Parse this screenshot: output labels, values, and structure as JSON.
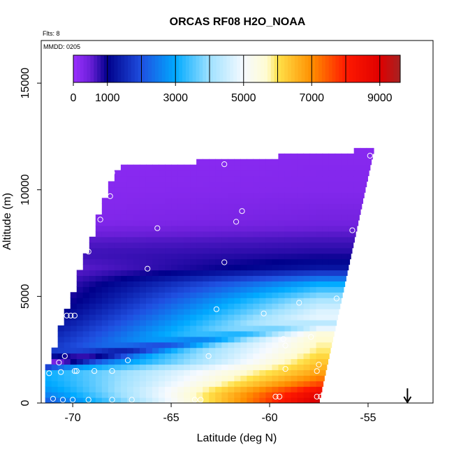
{
  "chart_data": {
    "type": "heatmap",
    "title": "ORCAS RF08 H2O_NOAA",
    "corner_labels": {
      "flights": "Flts: 8",
      "date": "MMDD: 0205"
    },
    "xlabel": "Latitude (deg N)",
    "ylabel": "Altitude (m)",
    "xlim": [
      -71.6,
      -51.7
    ],
    "ylim": [
      0,
      17000
    ],
    "x_ticks": [
      -70,
      -65,
      -60,
      -55
    ],
    "x_tick_labels": [
      "-70",
      "-65",
      "-60",
      "-55"
    ],
    "y_ticks": [
      0,
      5000,
      10000,
      15000
    ],
    "y_tick_labels": [
      "0",
      "5000",
      "10000",
      "15000"
    ],
    "colorbar": {
      "range": [
        0,
        9600
      ],
      "tick_values": [
        0,
        1000,
        3000,
        5000,
        7000,
        9000
      ],
      "tick_labels": [
        "0",
        "1000",
        "3000",
        "5000",
        "7000",
        "9000"
      ],
      "stops": [
        {
          "v": 0,
          "c": "#9b30ff"
        },
        {
          "v": 500,
          "c": "#6a1fd8"
        },
        {
          "v": 1000,
          "c": "#00008b"
        },
        {
          "v": 2000,
          "c": "#1f4fe0"
        },
        {
          "v": 3000,
          "c": "#00aaff"
        },
        {
          "v": 4000,
          "c": "#9fe1ff"
        },
        {
          "v": 5000,
          "c": "#f6faff"
        },
        {
          "v": 5700,
          "c": "#fffbd0"
        },
        {
          "v": 6000,
          "c": "#ffe24a"
        },
        {
          "v": 7000,
          "c": "#ff8f00"
        },
        {
          "v": 8000,
          "c": "#ff1a00"
        },
        {
          "v": 9000,
          "c": "#e00000"
        },
        {
          "v": 9600,
          "c": "#a52323"
        }
      ],
      "dividers": [
        1000,
        2000,
        3000,
        4000,
        5000,
        6000,
        7000,
        8000,
        9000
      ]
    },
    "domain": {
      "lat_min": -71.4,
      "lat_max_bottom": -57.5,
      "lat_max_top": -54.7,
      "alt_top_south": 10800,
      "alt_top_north": 11900
    },
    "field": [
      {
        "alt": 0,
        "lat_s": 2000,
        "lat_n": 9300
      },
      {
        "alt": 500,
        "lat_s": 2700,
        "lat_n": 8700
      },
      {
        "alt": 1000,
        "lat_s": 3000,
        "lat_n": 7400
      },
      {
        "alt": 1500,
        "lat_s": 3100,
        "lat_n": 6700
      },
      {
        "alt": 2000,
        "lat_s": 1600,
        "lat_n": 6300
      },
      {
        "alt": 2500,
        "lat_s": 1700,
        "lat_n": 5900
      },
      {
        "alt": 3200,
        "lat_s": 1400,
        "lat_n": 5600
      },
      {
        "alt": 4000,
        "lat_s": 1000,
        "lat_n": 5000
      },
      {
        "alt": 4800,
        "lat_s": 700,
        "lat_n": 4200
      },
      {
        "alt": 5600,
        "lat_s": 600,
        "lat_n": 3000
      },
      {
        "alt": 6300,
        "lat_s": 500,
        "lat_n": 1300
      },
      {
        "alt": 7000,
        "lat_s": 700,
        "lat_n": 850
      },
      {
        "alt": 7600,
        "lat_s": 600,
        "lat_n": 700
      },
      {
        "alt": 8500,
        "lat_s": 250,
        "lat_n": 400
      },
      {
        "alt": 10000,
        "lat_s": 200,
        "lat_n": 250
      },
      {
        "alt": 12000,
        "lat_s": 150,
        "lat_n": 200
      }
    ],
    "sample_points": [
      [
        -71.2,
        1400
      ],
      [
        -70.7,
        1900
      ],
      [
        -70.6,
        1450
      ],
      [
        -70.4,
        2200
      ],
      [
        -70.3,
        4100
      ],
      [
        -70.1,
        4100
      ],
      [
        -69.9,
        4100
      ],
      [
        -69.9,
        1500
      ],
      [
        -69.8,
        1500
      ],
      [
        -68.9,
        1500
      ],
      [
        -68.0,
        1500
      ],
      [
        -67.2,
        2000
      ],
      [
        -66.2,
        6300
      ],
      [
        -65.7,
        8200
      ],
      [
        -69.2,
        7100
      ],
      [
        -68.6,
        8600
      ],
      [
        -68.1,
        9700
      ],
      [
        -68.0,
        10800
      ],
      [
        -63.1,
        2200
      ],
      [
        -62.7,
        4400
      ],
      [
        -62.3,
        6600
      ],
      [
        -61.7,
        8500
      ],
      [
        -61.4,
        9000
      ],
      [
        -62.5,
        11700
      ],
      [
        -62.3,
        11200
      ],
      [
        -60.3,
        4200
      ],
      [
        -59.3,
        3000
      ],
      [
        -59.2,
        1600
      ],
      [
        -59.2,
        2700
      ],
      [
        -58.5,
        4700
      ],
      [
        -57.9,
        3100
      ],
      [
        -57.7,
        12100
      ],
      [
        -57.6,
        1500
      ],
      [
        -57.5,
        1800
      ],
      [
        -56.6,
        4900
      ],
      [
        -55.8,
        8100
      ],
      [
        -54.9,
        11600
      ],
      [
        -71.0,
        200
      ],
      [
        -70.5,
        150
      ],
      [
        -70.0,
        150
      ],
      [
        -69.2,
        150
      ],
      [
        -68.0,
        150
      ],
      [
        -67.0,
        150
      ],
      [
        -63.8,
        150
      ],
      [
        -63.5,
        150
      ],
      [
        -59.7,
        300
      ],
      [
        -59.5,
        300
      ],
      [
        -57.6,
        300
      ],
      [
        -57.4,
        300
      ]
    ],
    "arrow": {
      "lat": -53.0,
      "direction": "down",
      "label": ""
    }
  }
}
